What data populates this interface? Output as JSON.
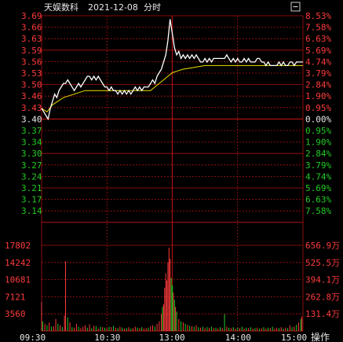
{
  "header": {
    "stock_name": "天娱数科",
    "date": "2021-12-08",
    "mode": "分时",
    "icon": "minus-box-icon"
  },
  "colors": {
    "up": "#ff3b3b",
    "down": "#22cc22",
    "grid": "#b01010",
    "price_line": "#ffffff",
    "avg_line": "#f0e000",
    "neutral": "#e8e8e8"
  },
  "chart_data": {
    "type": "line",
    "title": "天娱数科 2021-12-08 分时",
    "prev_close": 3.4,
    "price_ticks": [
      {
        "label": "3.69",
        "pct": "8.53%",
        "dir": "up"
      },
      {
        "label": "3.66",
        "pct": "7.58%",
        "dir": "up"
      },
      {
        "label": "3.63",
        "pct": "6.63%",
        "dir": "up"
      },
      {
        "label": "3.59",
        "pct": "5.69%",
        "dir": "up"
      },
      {
        "label": "3.56",
        "pct": "4.74%",
        "dir": "up"
      },
      {
        "label": "3.53",
        "pct": "3.79%",
        "dir": "up"
      },
      {
        "label": "3.50",
        "pct": "2.84%",
        "dir": "up"
      },
      {
        "label": "3.46",
        "pct": "1.90%",
        "dir": "up"
      },
      {
        "label": "3.43",
        "pct": "0.95%",
        "dir": "up"
      },
      {
        "label": "3.40",
        "pct": "0.00%",
        "dir": "flat"
      },
      {
        "label": "3.37",
        "pct": "0.95%",
        "dir": "down"
      },
      {
        "label": "3.34",
        "pct": "1.90%",
        "dir": "down"
      },
      {
        "label": "3.30",
        "pct": "2.84%",
        "dir": "down"
      },
      {
        "label": "3.27",
        "pct": "3.79%",
        "dir": "down"
      },
      {
        "label": "3.24",
        "pct": "4.74%",
        "dir": "down"
      },
      {
        "label": "3.21",
        "pct": "5.69%",
        "dir": "down"
      },
      {
        "label": "3.17",
        "pct": "6.63%",
        "dir": "down"
      },
      {
        "label": "3.14",
        "pct": "7.58%",
        "dir": "down"
      }
    ],
    "ylim": [
      3.11,
      3.69
    ],
    "volume_ticks": [
      {
        "left": "17802",
        "right": "656.9万"
      },
      {
        "left": "14242",
        "right": "525.5万"
      },
      {
        "left": "10681",
        "right": "394.1万"
      },
      {
        "left": "7121",
        "right": "262.8万"
      },
      {
        "left": "3560",
        "right": "131.4万"
      }
    ],
    "volume_max": 17802,
    "time_labels": [
      "09:30",
      "10:30",
      "13:00",
      "14:00",
      "15:00"
    ],
    "sessions_minutes": 240,
    "price_series": [
      [
        0,
        3.43
      ],
      [
        2,
        3.42
      ],
      [
        4,
        3.41
      ],
      [
        6,
        3.4
      ],
      [
        8,
        3.43
      ],
      [
        10,
        3.45
      ],
      [
        12,
        3.47
      ],
      [
        14,
        3.46
      ],
      [
        16,
        3.48
      ],
      [
        18,
        3.49
      ],
      [
        20,
        3.5
      ],
      [
        22,
        3.5
      ],
      [
        24,
        3.51
      ],
      [
        26,
        3.5
      ],
      [
        28,
        3.49
      ],
      [
        30,
        3.48
      ],
      [
        32,
        3.49
      ],
      [
        34,
        3.5
      ],
      [
        36,
        3.49
      ],
      [
        38,
        3.5
      ],
      [
        40,
        3.51
      ],
      [
        42,
        3.52
      ],
      [
        44,
        3.52
      ],
      [
        46,
        3.51
      ],
      [
        48,
        3.52
      ],
      [
        50,
        3.51
      ],
      [
        52,
        3.52
      ],
      [
        54,
        3.51
      ],
      [
        56,
        3.5
      ],
      [
        58,
        3.49
      ],
      [
        60,
        3.49
      ],
      [
        62,
        3.48
      ],
      [
        64,
        3.49
      ],
      [
        66,
        3.48
      ],
      [
        68,
        3.48
      ],
      [
        70,
        3.47
      ],
      [
        72,
        3.48
      ],
      [
        74,
        3.47
      ],
      [
        76,
        3.48
      ],
      [
        78,
        3.47
      ],
      [
        80,
        3.48
      ],
      [
        82,
        3.47
      ],
      [
        84,
        3.48
      ],
      [
        86,
        3.49
      ],
      [
        88,
        3.48
      ],
      [
        90,
        3.49
      ],
      [
        92,
        3.48
      ],
      [
        94,
        3.49
      ],
      [
        96,
        3.49
      ],
      [
        98,
        3.49
      ],
      [
        100,
        3.5
      ],
      [
        102,
        3.51
      ],
      [
        104,
        3.5
      ],
      [
        106,
        3.52
      ],
      [
        108,
        3.53
      ],
      [
        110,
        3.54
      ],
      [
        112,
        3.56
      ],
      [
        114,
        3.58
      ],
      [
        116,
        3.62
      ],
      [
        118,
        3.68
      ],
      [
        120,
        3.64
      ],
      [
        122,
        3.6
      ],
      [
        124,
        3.58
      ],
      [
        126,
        3.59
      ],
      [
        128,
        3.57
      ],
      [
        130,
        3.58
      ],
      [
        132,
        3.57
      ],
      [
        134,
        3.58
      ],
      [
        136,
        3.57
      ],
      [
        138,
        3.58
      ],
      [
        140,
        3.57
      ],
      [
        142,
        3.58
      ],
      [
        144,
        3.57
      ],
      [
        146,
        3.56
      ],
      [
        148,
        3.56
      ],
      [
        150,
        3.57
      ],
      [
        152,
        3.56
      ],
      [
        154,
        3.57
      ],
      [
        156,
        3.56
      ],
      [
        158,
        3.57
      ],
      [
        160,
        3.57
      ],
      [
        162,
        3.57
      ],
      [
        164,
        3.57
      ],
      [
        166,
        3.57
      ],
      [
        168,
        3.57
      ],
      [
        170,
        3.58
      ],
      [
        172,
        3.57
      ],
      [
        174,
        3.56
      ],
      [
        176,
        3.57
      ],
      [
        178,
        3.56
      ],
      [
        180,
        3.57
      ],
      [
        182,
        3.56
      ],
      [
        184,
        3.56
      ],
      [
        186,
        3.57
      ],
      [
        188,
        3.56
      ],
      [
        190,
        3.57
      ],
      [
        192,
        3.56
      ],
      [
        194,
        3.56
      ],
      [
        196,
        3.56
      ],
      [
        198,
        3.57
      ],
      [
        200,
        3.57
      ],
      [
        202,
        3.56
      ],
      [
        204,
        3.56
      ],
      [
        206,
        3.55
      ],
      [
        208,
        3.56
      ],
      [
        210,
        3.55
      ],
      [
        212,
        3.55
      ],
      [
        214,
        3.55
      ],
      [
        216,
        3.55
      ],
      [
        218,
        3.56
      ],
      [
        220,
        3.55
      ],
      [
        222,
        3.56
      ],
      [
        224,
        3.55
      ],
      [
        226,
        3.55
      ],
      [
        228,
        3.56
      ],
      [
        230,
        3.56
      ],
      [
        232,
        3.55
      ],
      [
        234,
        3.56
      ],
      [
        236,
        3.56
      ],
      [
        238,
        3.56
      ],
      [
        240,
        3.56
      ]
    ],
    "avg_series": [
      [
        0,
        3.43
      ],
      [
        5,
        3.42
      ],
      [
        10,
        3.44
      ],
      [
        15,
        3.45
      ],
      [
        20,
        3.46
      ],
      [
        30,
        3.47
      ],
      [
        40,
        3.48
      ],
      [
        50,
        3.48
      ],
      [
        60,
        3.48
      ],
      [
        70,
        3.48
      ],
      [
        80,
        3.48
      ],
      [
        90,
        3.48
      ],
      [
        100,
        3.48
      ],
      [
        104,
        3.49
      ],
      [
        108,
        3.5
      ],
      [
        112,
        3.51
      ],
      [
        116,
        3.52
      ],
      [
        120,
        3.53
      ],
      [
        125,
        3.535
      ],
      [
        130,
        3.54
      ],
      [
        140,
        3.545
      ],
      [
        150,
        3.55
      ],
      [
        160,
        3.55
      ],
      [
        180,
        3.55
      ],
      [
        200,
        3.55
      ],
      [
        220,
        3.55
      ],
      [
        240,
        3.55
      ]
    ],
    "volume_series": [
      [
        0,
        6000,
        "r"
      ],
      [
        1,
        2000,
        "g"
      ],
      [
        3,
        1500,
        "r"
      ],
      [
        5,
        1200,
        "g"
      ],
      [
        7,
        1800,
        "r"
      ],
      [
        9,
        900,
        "g"
      ],
      [
        11,
        1000,
        "r"
      ],
      [
        13,
        2500,
        "r"
      ],
      [
        15,
        1500,
        "g"
      ],
      [
        17,
        1200,
        "r"
      ],
      [
        19,
        800,
        "g"
      ],
      [
        21,
        3200,
        "r"
      ],
      [
        22,
        14500,
        "r"
      ],
      [
        24,
        2800,
        "g"
      ],
      [
        26,
        1800,
        "r"
      ],
      [
        28,
        800,
        "g"
      ],
      [
        30,
        700,
        "r"
      ],
      [
        32,
        1500,
        "r"
      ],
      [
        34,
        900,
        "g"
      ],
      [
        36,
        600,
        "r"
      ],
      [
        38,
        900,
        "r"
      ],
      [
        40,
        1200,
        "r"
      ],
      [
        42,
        700,
        "g"
      ],
      [
        44,
        1400,
        "r"
      ],
      [
        46,
        600,
        "g"
      ],
      [
        48,
        1100,
        "r"
      ],
      [
        50,
        1000,
        "g"
      ],
      [
        52,
        500,
        "r"
      ],
      [
        54,
        900,
        "g"
      ],
      [
        56,
        800,
        "r"
      ],
      [
        58,
        700,
        "g"
      ],
      [
        60,
        600,
        "r"
      ],
      [
        62,
        900,
        "g"
      ],
      [
        64,
        800,
        "r"
      ],
      [
        66,
        1100,
        "g"
      ],
      [
        68,
        700,
        "r"
      ],
      [
        70,
        600,
        "g"
      ],
      [
        72,
        900,
        "r"
      ],
      [
        74,
        700,
        "g"
      ],
      [
        76,
        500,
        "r"
      ],
      [
        78,
        600,
        "g"
      ],
      [
        80,
        800,
        "r"
      ],
      [
        82,
        500,
        "g"
      ],
      [
        84,
        600,
        "r"
      ],
      [
        86,
        900,
        "r"
      ],
      [
        88,
        700,
        "g"
      ],
      [
        90,
        600,
        "r"
      ],
      [
        92,
        800,
        "g"
      ],
      [
        94,
        500,
        "r"
      ],
      [
        96,
        600,
        "r"
      ],
      [
        98,
        700,
        "g"
      ],
      [
        100,
        1000,
        "r"
      ],
      [
        102,
        1200,
        "r"
      ],
      [
        104,
        900,
        "g"
      ],
      [
        106,
        1500,
        "r"
      ],
      [
        108,
        2000,
        "r"
      ],
      [
        110,
        3500,
        "r"
      ],
      [
        111,
        5000,
        "g"
      ],
      [
        112,
        5500,
        "r"
      ],
      [
        113,
        9000,
        "r"
      ],
      [
        114,
        12000,
        "r"
      ],
      [
        115,
        10500,
        "r"
      ],
      [
        116,
        14200,
        "r"
      ],
      [
        117,
        17300,
        "r"
      ],
      [
        118,
        15000,
        "r"
      ],
      [
        119,
        11000,
        "g"
      ],
      [
        120,
        9500,
        "g"
      ],
      [
        121,
        8000,
        "r"
      ],
      [
        122,
        6500,
        "g"
      ],
      [
        123,
        5000,
        "r"
      ],
      [
        124,
        4000,
        "g"
      ],
      [
        126,
        2500,
        "r"
      ],
      [
        128,
        2000,
        "g"
      ],
      [
        130,
        1800,
        "r"
      ],
      [
        132,
        1500,
        "g"
      ],
      [
        134,
        1300,
        "r"
      ],
      [
        136,
        1100,
        "g"
      ],
      [
        138,
        1000,
        "r"
      ],
      [
        140,
        900,
        "g"
      ],
      [
        142,
        1200,
        "r"
      ],
      [
        144,
        800,
        "g"
      ],
      [
        146,
        700,
        "r"
      ],
      [
        148,
        900,
        "g"
      ],
      [
        150,
        600,
        "r"
      ],
      [
        152,
        800,
        "g"
      ],
      [
        154,
        700,
        "r"
      ],
      [
        156,
        900,
        "g"
      ],
      [
        158,
        600,
        "r"
      ],
      [
        160,
        700,
        "g"
      ],
      [
        162,
        500,
        "r"
      ],
      [
        164,
        800,
        "g"
      ],
      [
        166,
        600,
        "r"
      ],
      [
        168,
        3500,
        "g"
      ],
      [
        170,
        900,
        "r"
      ],
      [
        172,
        700,
        "g"
      ],
      [
        174,
        600,
        "r"
      ],
      [
        176,
        800,
        "g"
      ],
      [
        178,
        500,
        "r"
      ],
      [
        180,
        700,
        "g"
      ],
      [
        182,
        600,
        "r"
      ],
      [
        184,
        900,
        "g"
      ],
      [
        186,
        500,
        "r"
      ],
      [
        188,
        700,
        "g"
      ],
      [
        190,
        600,
        "r"
      ],
      [
        192,
        800,
        "g"
      ],
      [
        194,
        500,
        "r"
      ],
      [
        196,
        600,
        "g"
      ],
      [
        198,
        700,
        "r"
      ],
      [
        200,
        500,
        "g"
      ],
      [
        202,
        600,
        "r"
      ],
      [
        204,
        800,
        "g"
      ],
      [
        206,
        500,
        "r"
      ],
      [
        208,
        700,
        "g"
      ],
      [
        210,
        600,
        "r"
      ],
      [
        212,
        900,
        "g"
      ],
      [
        214,
        500,
        "r"
      ],
      [
        216,
        700,
        "r"
      ],
      [
        218,
        600,
        "g"
      ],
      [
        220,
        800,
        "r"
      ],
      [
        222,
        500,
        "g"
      ],
      [
        224,
        700,
        "r"
      ],
      [
        226,
        600,
        "g"
      ],
      [
        228,
        1200,
        "r"
      ],
      [
        230,
        800,
        "g"
      ],
      [
        232,
        900,
        "r"
      ],
      [
        234,
        1300,
        "g"
      ],
      [
        236,
        1800,
        "r"
      ],
      [
        238,
        2500,
        "g"
      ],
      [
        239,
        3000,
        "r"
      ]
    ]
  },
  "footer": {
    "action_button": "操作"
  }
}
